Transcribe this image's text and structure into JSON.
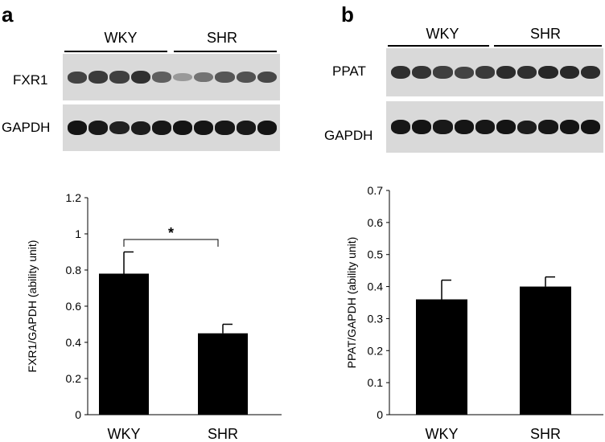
{
  "panels": [
    {
      "letter": "a",
      "groups": [
        "WKY",
        "SHR"
      ],
      "blots": [
        {
          "label": "FXR1",
          "band_intensity": [
            0.7,
            0.75,
            0.72,
            0.8,
            0.55,
            0.25,
            0.45,
            0.6,
            0.62,
            0.68
          ]
        },
        {
          "label": "GAPDH",
          "band_intensity": [
            0.95,
            0.92,
            0.88,
            0.9,
            0.93,
            0.95,
            0.94,
            0.93,
            0.92,
            0.95
          ]
        }
      ]
    },
    {
      "letter": "b",
      "groups": [
        "WKY",
        "SHR"
      ],
      "blots": [
        {
          "label": "PPAT",
          "band_intensity": [
            0.8,
            0.78,
            0.72,
            0.7,
            0.75,
            0.82,
            0.8,
            0.85,
            0.84,
            0.82
          ]
        },
        {
          "label": "GAPDH",
          "band_intensity": [
            0.93,
            0.95,
            0.92,
            0.94,
            0.93,
            0.95,
            0.9,
            0.93,
            0.94,
            0.95
          ]
        }
      ]
    }
  ],
  "chart_data": [
    {
      "type": "bar",
      "categories": [
        "WKY",
        "SHR"
      ],
      "values": [
        0.78,
        0.45
      ],
      "errors": [
        0.12,
        0.05
      ],
      "ylabel": "FXR1/GAPDH (ability unit)",
      "ylim": [
        0,
        1.2
      ],
      "yticks": [
        "0",
        "0.2",
        "0.4",
        "0.6",
        "0.8",
        "1",
        "1.2"
      ],
      "significance": {
        "between": [
          "WKY",
          "SHR"
        ],
        "mark": "*"
      },
      "bar_color": "#000000"
    },
    {
      "type": "bar",
      "categories": [
        "WKY",
        "SHR"
      ],
      "values": [
        0.36,
        0.4
      ],
      "errors": [
        0.06,
        0.03
      ],
      "ylabel": "PPAT/GAPDH (ability unit)",
      "ylim": [
        0,
        0.7
      ],
      "yticks": [
        "0",
        "0.1",
        "0.2",
        "0.3",
        "0.4",
        "0.5",
        "0.6",
        "0.7"
      ],
      "bar_color": "#000000"
    }
  ]
}
